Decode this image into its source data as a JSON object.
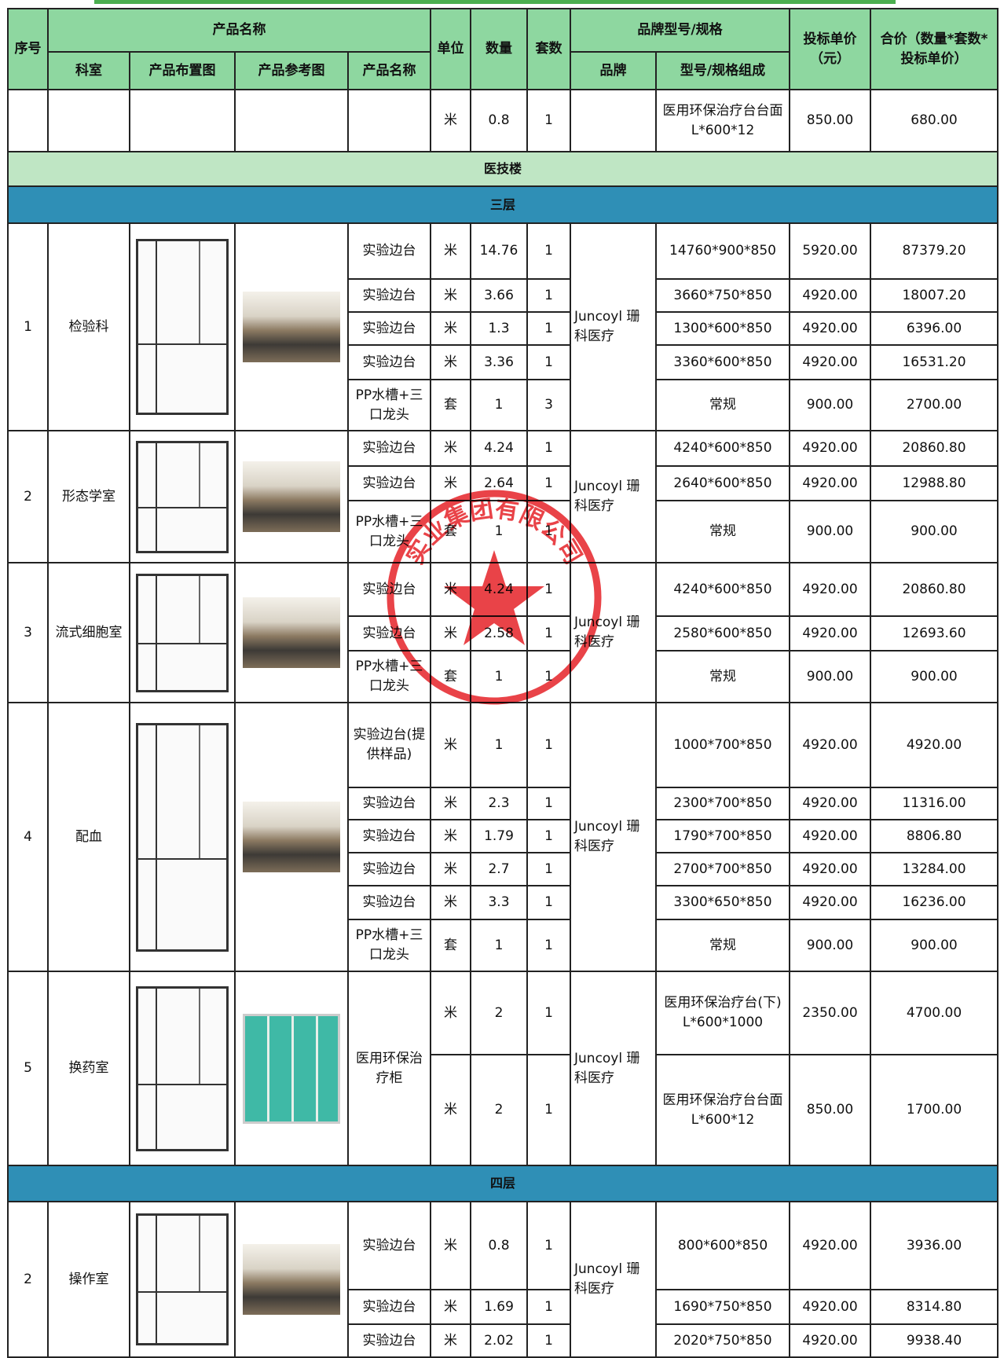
{
  "header": {
    "seq": "序号",
    "product_group": "产品名称",
    "unit": "单位",
    "qty": "数量",
    "sets": "套数",
    "brand_group": "品牌型号/规格",
    "price": "投标单价（元）",
    "total": "合价（数量*套数*投标单价）",
    "room": "科室",
    "layout": "产品布置图",
    "reference": "产品参考图",
    "product": "产品名称",
    "brand": "品牌",
    "model": "型号/规格组成"
  },
  "body": [
    {
      "items": [
        {
          "unit": "米",
          "qty": "0.8",
          "sets": "1",
          "model": "医用环保治疗台台面 L*600*12",
          "price": "850.00",
          "total": "680.00"
        }
      ]
    },
    {
      "band": "医技楼",
      "color": "#bfe6c4"
    },
    {
      "band": "三层",
      "color": "#2f8fb6"
    },
    {
      "seq": "1",
      "room": "检验科",
      "brand": "Juncoyl 珊科医疗",
      "items": [
        {
          "name": "实验边台",
          "unit": "米",
          "qty": "14.76",
          "sets": "1",
          "model": "14760*900*850",
          "price": "5920.00",
          "total": "87379.20"
        },
        {
          "name": "实验边台",
          "unit": "米",
          "qty": "3.66",
          "sets": "1",
          "model": "3660*750*850",
          "price": "4920.00",
          "total": "18007.20"
        },
        {
          "name": "实验边台",
          "unit": "米",
          "qty": "1.3",
          "sets": "1",
          "model": "1300*600*850",
          "price": "4920.00",
          "total": "6396.00"
        },
        {
          "name": "实验边台",
          "unit": "米",
          "qty": "3.36",
          "sets": "1",
          "model": "3360*600*850",
          "price": "4920.00",
          "total": "16531.20"
        },
        {
          "name": "PP水槽+三口龙头",
          "unit": "套",
          "qty": "1",
          "sets": "3",
          "model": "常规",
          "price": "900.00",
          "total": "2700.00"
        }
      ]
    },
    {
      "seq": "2",
      "room": "形态学室",
      "brand": "Juncoyl 珊科医疗",
      "items": [
        {
          "name": "实验边台",
          "unit": "米",
          "qty": "4.24",
          "sets": "1",
          "model": "4240*600*850",
          "price": "4920.00",
          "total": "20860.80"
        },
        {
          "name": "实验边台",
          "unit": "米",
          "qty": "2.64",
          "sets": "1",
          "model": "2640*600*850",
          "price": "4920.00",
          "total": "12988.80"
        },
        {
          "name": "PP水槽+三口龙头",
          "unit": "套",
          "qty": "1",
          "sets": "1",
          "model": "常规",
          "price": "900.00",
          "total": "900.00"
        }
      ]
    },
    {
      "seq": "3",
      "room": "流式细胞室",
      "brand": "Juncoyl 珊科医疗",
      "items": [
        {
          "name": "实验边台",
          "unit": "米",
          "qty": "4.24",
          "sets": "1",
          "model": "4240*600*850",
          "price": "4920.00",
          "total": "20860.80"
        },
        {
          "name": "实验边台",
          "unit": "米",
          "qty": "2.58",
          "sets": "1",
          "model": "2580*600*850",
          "price": "4920.00",
          "total": "12693.60"
        },
        {
          "name": "PP水槽+三口龙头",
          "unit": "套",
          "qty": "1",
          "sets": "1",
          "model": "常规",
          "price": "900.00",
          "total": "900.00"
        }
      ]
    },
    {
      "seq": "4",
      "room": "配血",
      "brand": "Juncoyl 珊科医疗",
      "items": [
        {
          "name": "实验边台(提供样品)",
          "unit": "米",
          "qty": "1",
          "sets": "1",
          "model": "1000*700*850",
          "price": "4920.00",
          "total": "4920.00"
        },
        {
          "name": "实验边台",
          "unit": "米",
          "qty": "2.3",
          "sets": "1",
          "model": "2300*700*850",
          "price": "4920.00",
          "total": "11316.00"
        },
        {
          "name": "实验边台",
          "unit": "米",
          "qty": "1.79",
          "sets": "1",
          "model": "1790*700*850",
          "price": "4920.00",
          "total": "8806.80"
        },
        {
          "name": "实验边台",
          "unit": "米",
          "qty": "2.7",
          "sets": "1",
          "model": "2700*700*850",
          "price": "4920.00",
          "total": "13284.00"
        },
        {
          "name": "实验边台",
          "unit": "米",
          "qty": "3.3",
          "sets": "1",
          "model": "3300*650*850",
          "price": "4920.00",
          "total": "16236.00"
        },
        {
          "name": "PP水槽+三口龙头",
          "unit": "套",
          "qty": "1",
          "sets": "1",
          "model": "常规",
          "price": "900.00",
          "total": "900.00"
        }
      ]
    },
    {
      "seq": "5",
      "room": "换药室",
      "brand": "Juncoyl 珊科医疗",
      "product": "医用环保治疗柜",
      "items": [
        {
          "unit": "米",
          "qty": "2",
          "sets": "1",
          "model": "医用环保治疗台(下) L*600*1000",
          "price": "2350.00",
          "total": "4700.00"
        },
        {
          "unit": "米",
          "qty": "2",
          "sets": "1",
          "model": "医用环保治疗台台面 L*600*12",
          "price": "850.00",
          "total": "1700.00"
        }
      ]
    },
    {
      "band": "四层",
      "color": "#2f8fb6"
    },
    {
      "seq": "2",
      "room": "操作室",
      "brand": "Juncoyl 珊科医疗",
      "items": [
        {
          "name": "实验边台",
          "unit": "米",
          "qty": "0.8",
          "sets": "1",
          "model": "800*600*850",
          "price": "4920.00",
          "total": "3936.00"
        },
        {
          "name": "实验边台",
          "unit": "米",
          "qty": "1.69",
          "sets": "1",
          "model": "1690*750*850",
          "price": "4920.00",
          "total": "8314.80"
        },
        {
          "name": "实验边台",
          "unit": "米",
          "qty": "2.02",
          "sets": "1",
          "model": "2020*750*850",
          "price": "4920.00",
          "total": "9938.40"
        }
      ]
    }
  ],
  "stamp": {
    "text": "实业集团有限公司"
  }
}
